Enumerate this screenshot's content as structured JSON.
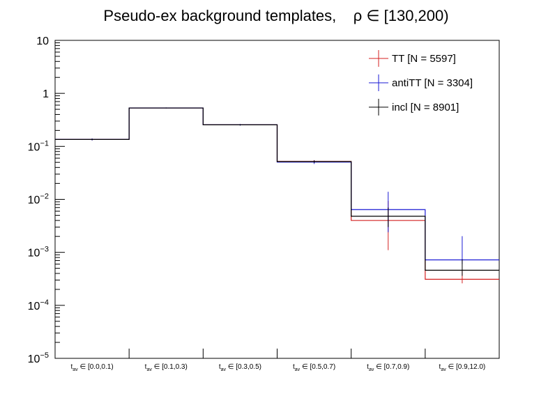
{
  "chart_data": {
    "type": "line",
    "title": "Pseudo-ex background templates,    ρ ∈ [130,200)",
    "xlabel": "",
    "ylabel": "",
    "yscale": "log",
    "ylim": [
      1e-05,
      10
    ],
    "grid": false,
    "legend_position": "top-right",
    "y_ticks": [
      {
        "value": 10,
        "label": "10"
      },
      {
        "value": 1,
        "label": "1"
      },
      {
        "value": 0.1,
        "label": "10",
        "exp": "−1"
      },
      {
        "value": 0.01,
        "label": "10",
        "exp": "−2"
      },
      {
        "value": 0.001,
        "label": "10",
        "exp": "−3"
      },
      {
        "value": 0.0001,
        "label": "10",
        "exp": "−4"
      },
      {
        "value": 1e-05,
        "label": "10",
        "exp": "−5"
      }
    ],
    "categories": [
      {
        "base": "t",
        "sub": "av",
        "rest": " ∈ [0.0,0.1)"
      },
      {
        "base": "t",
        "sub": "av",
        "rest": " ∈ [0.1,0.3)"
      },
      {
        "base": "t",
        "sub": "av",
        "rest": " ∈ [0.3,0.5)"
      },
      {
        "base": "t",
        "sub": "av",
        "rest": " ∈ [0.5,0.7)"
      },
      {
        "base": "t",
        "sub": "av",
        "rest": " ∈ [0.7,0.9)"
      },
      {
        "base": "t",
        "sub": "av",
        "rest": " ∈ [0.9,12.0)"
      }
    ],
    "series": [
      {
        "name": "TT [N = 5597]",
        "color": "#d42020",
        "values": [
          0.135,
          0.53,
          0.255,
          0.052,
          0.004,
          0.00031
        ],
        "err_low": [
          0.005,
          0.01,
          0.007,
          0.003,
          0.0029,
          5e-05
        ],
        "err_high": [
          0.005,
          0.01,
          0.007,
          0.003,
          0.0053,
          0.00015
        ]
      },
      {
        "name": "antiTT [N = 3304]",
        "color": "#1a1ad4",
        "values": [
          0.135,
          0.53,
          0.255,
          0.0505,
          0.0064,
          0.00072
        ],
        "err_low": [
          0.006,
          0.012,
          0.009,
          0.004,
          0.004,
          0.00012
        ],
        "err_high": [
          0.006,
          0.012,
          0.009,
          0.004,
          0.0075,
          0.0013
        ]
      },
      {
        "name": "incl [N = 8901]",
        "color": "#000000",
        "values": [
          0.135,
          0.53,
          0.255,
          0.0515,
          0.0048,
          0.00046
        ],
        "err_low": [
          0.004,
          0.009,
          0.006,
          0.0025,
          0.0018,
          0.0001
        ],
        "err_high": [
          0.004,
          0.009,
          0.006,
          0.0025,
          0.0022,
          0.00028
        ]
      }
    ]
  }
}
